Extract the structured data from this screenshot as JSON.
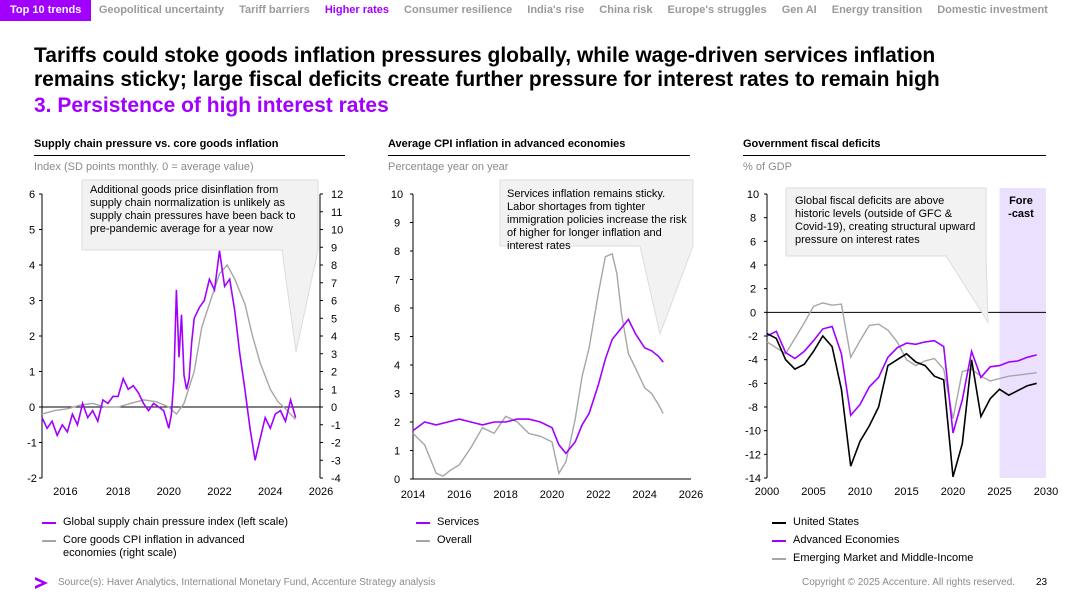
{
  "nav": {
    "tabs": [
      "Top 10 trends",
      "Geopolitical uncertainty",
      "Tariff barriers",
      "Higher rates",
      "Consumer resilience",
      "India's rise",
      "China risk",
      "Europe's struggles",
      "Gen AI",
      "Energy transition",
      "Domestic investment"
    ]
  },
  "headline": {
    "line1": "Tariffs could stoke goods inflation pressures globally, while wage-driven services inflation",
    "line2": "remains sticky; large fiscal deficits create further pressure for interest rates to remain high",
    "subtitle": "3. Persistence of high interest rates"
  },
  "colors": {
    "accent": "#a100ff",
    "grey": "#a6a6a6",
    "black": "#000000"
  },
  "charts": {
    "c1": {
      "title": "Supply chain pressure vs. core goods inflation",
      "unit": "Index (SD points monthly. 0 = average value)",
      "note": "Additional goods price disinflation from supply chain normalization is unlikely as supply chain pressures have been back to pre-pandemic average for a year now",
      "legend_a": "Global supply chain pressure index (left scale)",
      "legend_b": "Core goods CPI inflation in advanced economies (right scale)"
    },
    "c2": {
      "title": "Average CPI inflation in advanced economies",
      "unit": "Percentage year on year",
      "note": "Services inflation remains sticky. Labor shortages from tighter immigration policies increase the risk of higher for longer inflation and interest rates",
      "legend_a": "Services",
      "legend_b": "Overall"
    },
    "c3": {
      "title": "Government fiscal deficits",
      "unit": "% of GDP",
      "note": "Global fiscal deficits are above historic levels (outside of GFC & Covid-19), creating structural upward pressure on interest rates",
      "forecast": "Fore\n-cast",
      "legend_a": "United States",
      "legend_b": "Advanced Economies",
      "legend_c": "Emerging Market and Middle-Income"
    }
  },
  "footer": {
    "source": "Source(s): Haver Analytics, International Monetary Fund, Accenture Strategy analysis",
    "copyright": "Copyright © 2025 Accenture. All rights reserved.",
    "page": "23"
  },
  "chart_data": [
    {
      "type": "line",
      "title": "Supply chain pressure vs. core goods inflation",
      "xlim": [
        2015,
        2026
      ],
      "xticks": [
        2016,
        2018,
        2020,
        2022,
        2024,
        2026
      ],
      "ylim_left": [
        -2,
        6
      ],
      "ylim_right": [
        -4,
        12
      ],
      "yticks_left": [
        -2,
        -1,
        0,
        1,
        2,
        3,
        4,
        5,
        6
      ],
      "yticks_right": [
        -4,
        -3,
        -2,
        -1,
        0,
        1,
        2,
        3,
        4,
        5,
        6,
        7,
        8,
        9,
        10,
        11,
        12
      ],
      "series": [
        {
          "name": "Global supply chain pressure index (left scale)",
          "axis": "left",
          "x": [
            2015,
            2015.2,
            2015.4,
            2015.6,
            2015.8,
            2016,
            2016.2,
            2016.4,
            2016.6,
            2016.8,
            2017,
            2017.2,
            2017.4,
            2017.6,
            2017.8,
            2018,
            2018.2,
            2018.4,
            2018.6,
            2018.8,
            2019,
            2019.2,
            2019.4,
            2019.6,
            2019.8,
            2020,
            2020.1,
            2020.2,
            2020.3,
            2020.4,
            2020.5,
            2020.6,
            2020.7,
            2020.8,
            2020.9,
            2021,
            2021.2,
            2021.4,
            2021.6,
            2021.8,
            2022,
            2022.2,
            2022.4,
            2022.6,
            2022.8,
            2023,
            2023.2,
            2023.4,
            2023.6,
            2023.8,
            2024,
            2024.2,
            2024.4,
            2024.6,
            2024.8,
            2025
          ],
          "values": [
            -0.3,
            -0.6,
            -0.4,
            -0.8,
            -0.5,
            -0.7,
            -0.2,
            -0.5,
            0.1,
            -0.3,
            -0.1,
            -0.4,
            0.2,
            0.1,
            0.3,
            0.3,
            0.8,
            0.5,
            0.6,
            0.4,
            0.1,
            -0.1,
            0.1,
            0.0,
            -0.1,
            -0.6,
            -0.2,
            0.8,
            3.3,
            1.4,
            2.6,
            0.9,
            0.5,
            0.8,
            1.8,
            2.5,
            2.8,
            3.0,
            3.6,
            3.3,
            4.4,
            3.4,
            3.6,
            2.7,
            1.5,
            0.5,
            -0.6,
            -1.5,
            -0.9,
            -0.3,
            -0.6,
            -0.2,
            -0.1,
            -0.4,
            0.2,
            -0.3
          ]
        },
        {
          "name": "Core goods CPI inflation in advanced economies (right scale)",
          "axis": "right",
          "x": [
            2015,
            2015.5,
            2016,
            2016.5,
            2017,
            2017.5,
            2018,
            2018.5,
            2019,
            2019.5,
            2020,
            2020.3,
            2020.6,
            2021,
            2021.3,
            2021.6,
            2022,
            2022.3,
            2022.6,
            2023,
            2023.3,
            2023.6,
            2024,
            2024.3,
            2024.6,
            2025
          ],
          "values": [
            -0.4,
            -0.2,
            -0.1,
            0.1,
            0.2,
            0.0,
            0.0,
            0.2,
            0.4,
            0.3,
            0.0,
            -0.4,
            0.2,
            2.0,
            4.5,
            5.8,
            7.5,
            8.0,
            7.2,
            5.8,
            4.0,
            2.5,
            1.0,
            0.3,
            -0.1,
            -0.7
          ]
        }
      ]
    },
    {
      "type": "line",
      "title": "Average CPI inflation in advanced economies",
      "xlim": [
        2014,
        2026
      ],
      "xticks": [
        2014,
        2016,
        2018,
        2020,
        2022,
        2024,
        2026
      ],
      "ylim": [
        0,
        10
      ],
      "yticks": [
        0,
        1,
        2,
        3,
        4,
        5,
        6,
        7,
        8,
        9,
        10
      ],
      "series": [
        {
          "name": "Services",
          "x": [
            2014,
            2014.5,
            2015,
            2015.5,
            2016,
            2016.5,
            2017,
            2017.5,
            2018,
            2018.5,
            2019,
            2019.5,
            2020,
            2020.3,
            2020.6,
            2021,
            2021.3,
            2021.6,
            2022,
            2022.3,
            2022.6,
            2023,
            2023.3,
            2023.6,
            2024,
            2024.3,
            2024.6,
            2024.8
          ],
          "values": [
            1.7,
            2.0,
            1.9,
            2.0,
            2.1,
            2.0,
            1.9,
            2.0,
            2.0,
            2.1,
            2.1,
            2.0,
            1.8,
            1.2,
            0.9,
            1.3,
            1.9,
            2.3,
            3.3,
            4.2,
            4.9,
            5.3,
            5.6,
            5.1,
            4.6,
            4.5,
            4.3,
            4.1
          ]
        },
        {
          "name": "Overall",
          "x": [
            2014,
            2014.5,
            2015,
            2015.3,
            2015.6,
            2016,
            2016.5,
            2017,
            2017.5,
            2018,
            2018.5,
            2019,
            2019.5,
            2020,
            2020.3,
            2020.6,
            2021,
            2021.3,
            2021.6,
            2022,
            2022.3,
            2022.6,
            2022.8,
            2023,
            2023.3,
            2023.6,
            2024,
            2024.3,
            2024.6,
            2024.8
          ],
          "values": [
            1.6,
            1.2,
            0.2,
            0.1,
            0.3,
            0.5,
            1.1,
            1.8,
            1.6,
            2.2,
            2.0,
            1.6,
            1.5,
            1.3,
            0.2,
            0.6,
            2.1,
            3.6,
            4.6,
            6.5,
            7.8,
            7.9,
            7.2,
            5.8,
            4.4,
            3.9,
            3.2,
            3.0,
            2.6,
            2.3
          ]
        }
      ]
    },
    {
      "type": "line",
      "title": "Government fiscal deficits",
      "xlim": [
        2000,
        2030
      ],
      "xticks": [
        2000,
        2005,
        2010,
        2015,
        2020,
        2025,
        2030
      ],
      "ylim": [
        -14,
        10
      ],
      "yticks": [
        -14,
        -12,
        -10,
        -8,
        -6,
        -4,
        -2,
        0,
        2,
        4,
        6,
        8,
        10
      ],
      "forecast_from": 2025,
      "series": [
        {
          "name": "United States",
          "x": [
            2000,
            2001,
            2002,
            2003,
            2004,
            2005,
            2006,
            2007,
            2008,
            2009,
            2010,
            2011,
            2012,
            2013,
            2014,
            2015,
            2016,
            2017,
            2018,
            2019,
            2020,
            2021,
            2022,
            2023,
            2024,
            2025,
            2026,
            2027,
            2028,
            2029
          ],
          "values": [
            -1.8,
            -2.2,
            -4.0,
            -4.8,
            -4.4,
            -3.3,
            -2.0,
            -2.9,
            -6.5,
            -13.0,
            -10.9,
            -9.6,
            -8.0,
            -4.5,
            -4.0,
            -3.5,
            -4.2,
            -4.5,
            -5.4,
            -5.7,
            -13.9,
            -11.1,
            -4.0,
            -8.8,
            -7.3,
            -6.5,
            -7.0,
            -6.6,
            -6.2,
            -6.0
          ]
        },
        {
          "name": "Advanced Economies",
          "x": [
            2000,
            2001,
            2002,
            2003,
            2004,
            2005,
            2006,
            2007,
            2008,
            2009,
            2010,
            2011,
            2012,
            2013,
            2014,
            2015,
            2016,
            2017,
            2018,
            2019,
            2020,
            2021,
            2022,
            2023,
            2024,
            2025,
            2026,
            2027,
            2028,
            2029
          ],
          "values": [
            -2.0,
            -1.6,
            -3.4,
            -3.9,
            -3.3,
            -2.4,
            -1.4,
            -1.2,
            -3.5,
            -8.7,
            -7.8,
            -6.3,
            -5.5,
            -3.8,
            -3.0,
            -2.6,
            -2.7,
            -2.5,
            -2.4,
            -2.9,
            -10.2,
            -7.4,
            -3.3,
            -5.5,
            -4.6,
            -4.5,
            -4.2,
            -4.1,
            -3.8,
            -3.6
          ]
        },
        {
          "name": "Emerging Market and Middle-Income",
          "x": [
            2000,
            2001,
            2002,
            2003,
            2004,
            2005,
            2006,
            2007,
            2008,
            2009,
            2010,
            2011,
            2012,
            2013,
            2014,
            2015,
            2016,
            2017,
            2018,
            2019,
            2020,
            2021,
            2022,
            2023,
            2024,
            2025,
            2026,
            2027,
            2028,
            2029
          ],
          "values": [
            -2.5,
            -3.0,
            -3.5,
            -2.2,
            -0.9,
            0.5,
            0.8,
            0.6,
            0.7,
            -3.8,
            -2.4,
            -1.1,
            -1.0,
            -1.5,
            -2.5,
            -4.0,
            -4.5,
            -4.1,
            -3.9,
            -4.8,
            -9.0,
            -5.0,
            -4.8,
            -5.4,
            -5.8,
            -5.6,
            -5.4,
            -5.3,
            -5.2,
            -5.1
          ]
        }
      ]
    }
  ]
}
